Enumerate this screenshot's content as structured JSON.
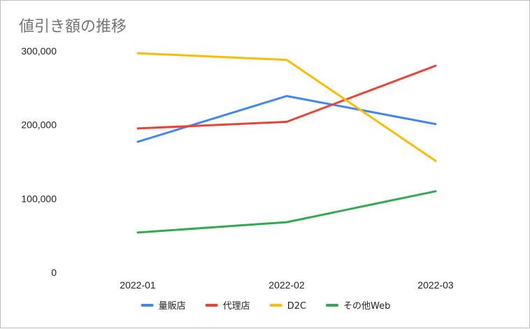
{
  "chart_data": {
    "type": "line",
    "title": "値引き額の推移",
    "xlabel": "",
    "ylabel": "",
    "categories": [
      "2022-01",
      "2022-02",
      "2022-03"
    ],
    "ylim": [
      0,
      300000
    ],
    "yticks": [
      0,
      100000,
      200000,
      300000
    ],
    "ytick_labels": [
      "0",
      "100,000",
      "200,000",
      "300,000"
    ],
    "grid": false,
    "legend_position": "bottom",
    "series": [
      {
        "name": "量販店",
        "color": "#4285f4",
        "values": [
          177000,
          239000,
          201000
        ]
      },
      {
        "name": "代理店",
        "color": "#ea4335",
        "values": [
          195000,
          204000,
          280000
        ]
      },
      {
        "name": "D2C",
        "color": "#fbbc04",
        "values": [
          297000,
          288000,
          151000
        ]
      },
      {
        "name": "その他Web",
        "color": "#34a853",
        "values": [
          54000,
          68000,
          110000
        ]
      }
    ]
  }
}
